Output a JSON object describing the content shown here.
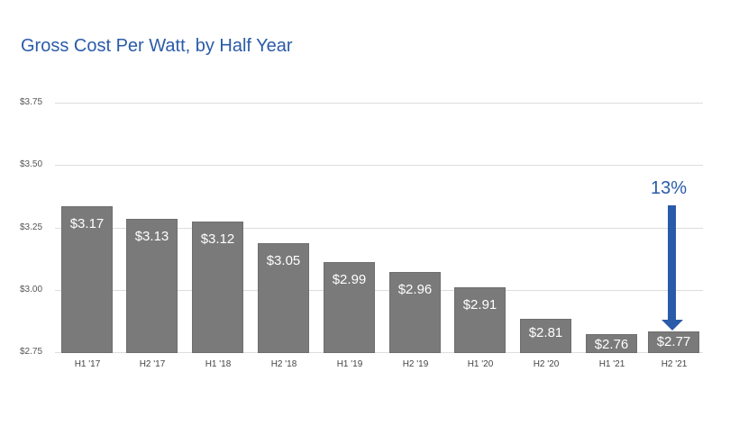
{
  "chart_data": {
    "type": "bar",
    "title": "Gross Cost Per Watt, by Half Year",
    "xlabel": "",
    "ylabel": "",
    "ylim": [
      2.75,
      3.75
    ],
    "yticks": [
      "$3.75",
      "$3.50",
      "$3.25",
      "$3.00",
      "$2.75"
    ],
    "categories": [
      "H1 '17",
      "H2 '17",
      "H1 '18",
      "H2 '18",
      "H1 '19",
      "H2 '19",
      "H1 '20",
      "H2 '20",
      "H1 '21",
      "H2 '21"
    ],
    "values": [
      3.17,
      3.13,
      3.12,
      3.05,
      2.99,
      2.96,
      2.91,
      2.81,
      2.76,
      2.77
    ],
    "value_labels": [
      "$3.17",
      "$3.13",
      "$3.12",
      "$3.05",
      "$2.99",
      "$2.96",
      "$2.91",
      "$2.81",
      "$2.76",
      "$2.77"
    ],
    "annotation": {
      "text": "13%",
      "target": "H2 '21",
      "type": "down-arrow"
    },
    "grid": true,
    "bar_color": "#7a7a7a",
    "accent_color": "#2a5ba8"
  }
}
